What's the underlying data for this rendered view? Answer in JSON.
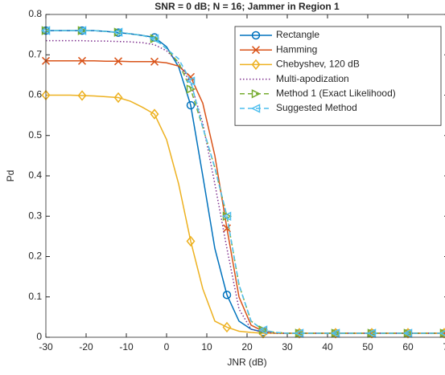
{
  "chart_data": {
    "type": "line",
    "title": "SNR = 0 dB; N  = 16; Jammer in Region 1",
    "xlabel": "JNR (dB)",
    "ylabel": "Pd",
    "x": [
      -30,
      -27,
      -24,
      -21,
      -18,
      -15,
      -12,
      -9,
      -6,
      -3,
      0,
      3,
      6,
      9,
      12,
      15,
      18,
      21,
      24,
      27,
      30,
      33,
      36,
      39,
      42,
      45,
      48,
      51,
      54,
      57,
      60,
      63,
      66,
      69
    ],
    "xlim": [
      -30,
      70
    ],
    "xticks": [
      -30,
      -20,
      -10,
      0,
      10,
      20,
      30,
      40,
      50,
      60,
      70
    ],
    "ylim": [
      0,
      0.8
    ],
    "yticks": [
      0,
      0.1,
      0.2,
      0.3,
      0.4,
      0.5,
      0.6,
      0.7,
      0.8
    ],
    "grid": false,
    "legend": "top-right",
    "series": [
      {
        "name": "Rectangle",
        "color": "#0072BD",
        "dash": "solid",
        "marker": "circle",
        "values": [
          0.76,
          0.76,
          0.76,
          0.76,
          0.76,
          0.758,
          0.755,
          0.752,
          0.748,
          0.743,
          0.72,
          0.67,
          0.575,
          0.4,
          0.22,
          0.105,
          0.04,
          0.02,
          0.013,
          0.01,
          0.01,
          0.01,
          0.01,
          0.01,
          0.01,
          0.01,
          0.01,
          0.01,
          0.01,
          0.01,
          0.01,
          0.01,
          0.01,
          0.01
        ]
      },
      {
        "name": "Hamming",
        "color": "#D95319",
        "dash": "solid",
        "marker": "cross",
        "values": [
          0.685,
          0.685,
          0.685,
          0.685,
          0.685,
          0.684,
          0.684,
          0.683,
          0.683,
          0.683,
          0.68,
          0.672,
          0.645,
          0.58,
          0.45,
          0.27,
          0.1,
          0.03,
          0.015,
          0.01,
          0.01,
          0.01,
          0.01,
          0.01,
          0.01,
          0.01,
          0.01,
          0.01,
          0.01,
          0.01,
          0.01,
          0.01,
          0.01,
          0.01
        ]
      },
      {
        "name": "Chebyshev, 120 dB",
        "color": "#EDB120",
        "dash": "solid",
        "marker": "diamond",
        "values": [
          0.6,
          0.6,
          0.6,
          0.599,
          0.598,
          0.596,
          0.594,
          0.585,
          0.57,
          0.553,
          0.49,
          0.38,
          0.238,
          0.12,
          0.04,
          0.025,
          0.015,
          0.012,
          0.01,
          0.01,
          0.01,
          0.01,
          0.01,
          0.01,
          0.01,
          0.01,
          0.01,
          0.01,
          0.01,
          0.01,
          0.01,
          0.01,
          0.01,
          0.01
        ]
      },
      {
        "name": "Multi-apodization",
        "color": "#7E2F8E",
        "dash": "dotted",
        "marker": "none",
        "values": [
          0.735,
          0.735,
          0.735,
          0.735,
          0.734,
          0.734,
          0.733,
          0.732,
          0.73,
          0.725,
          0.71,
          0.68,
          0.63,
          0.53,
          0.38,
          0.22,
          0.07,
          0.02,
          0.012,
          0.01,
          0.01,
          0.01,
          0.01,
          0.01,
          0.01,
          0.01,
          0.01,
          0.01,
          0.01,
          0.01,
          0.01,
          0.01,
          0.01,
          0.01
        ]
      },
      {
        "name": "Method 1 (Exact Likelihood)",
        "color": "#77AC30",
        "dash": "dashed",
        "marker": "triangle-right",
        "values": [
          0.76,
          0.76,
          0.76,
          0.76,
          0.76,
          0.758,
          0.756,
          0.752,
          0.748,
          0.74,
          0.715,
          0.68,
          0.615,
          0.52,
          0.42,
          0.3,
          0.13,
          0.04,
          0.018,
          0.012,
          0.01,
          0.01,
          0.01,
          0.01,
          0.01,
          0.01,
          0.01,
          0.01,
          0.01,
          0.01,
          0.01,
          0.01,
          0.01,
          0.01
        ]
      },
      {
        "name": "Suggested Method",
        "color": "#4DBEEE",
        "dash": "dashed",
        "marker": "triangle-left",
        "values": [
          0.76,
          0.76,
          0.76,
          0.76,
          0.76,
          0.758,
          0.756,
          0.752,
          0.748,
          0.74,
          0.715,
          0.69,
          0.635,
          0.52,
          0.42,
          0.3,
          0.13,
          0.04,
          0.018,
          0.012,
          0.01,
          0.01,
          0.01,
          0.01,
          0.01,
          0.01,
          0.01,
          0.01,
          0.01,
          0.01,
          0.01,
          0.01,
          0.01,
          0.01
        ]
      }
    ]
  }
}
